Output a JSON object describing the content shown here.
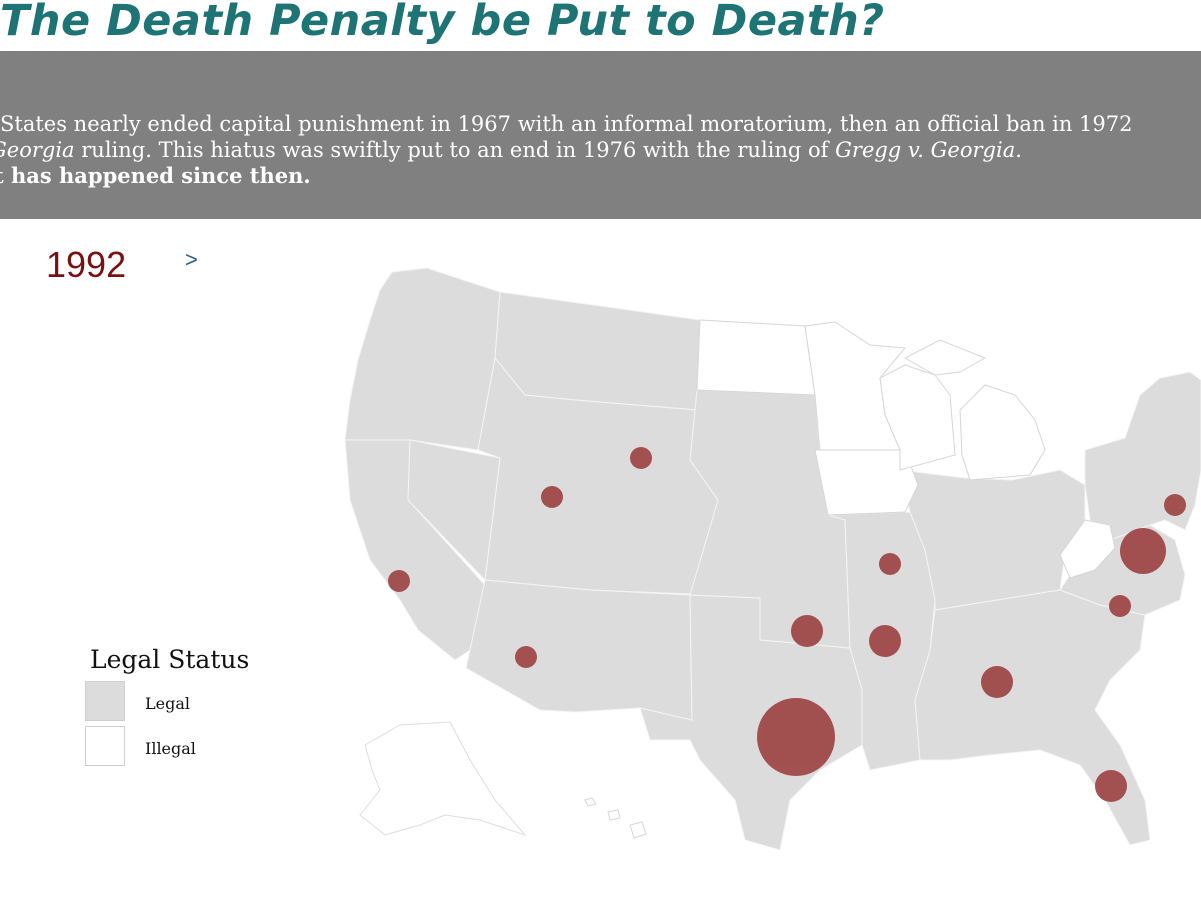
{
  "page": {
    "title": "The Death Penalty be Put to Death?"
  },
  "intro": {
    "line1": "States nearly ended capital punishment in 1967 with an informal moratorium, then an official ban in 1972",
    "line2_pre": "Georgia",
    "line2_mid": " ruling. This hiatus was swiftly put to an end in 1976 with the ruling of ",
    "line2_case": "Gregg v. Georgia",
    "line2_post": ".",
    "line3": "t has happened since then."
  },
  "controls": {
    "year": "1992",
    "next_label": ">"
  },
  "legend": {
    "title": "Legal Status",
    "items": [
      {
        "label": "Legal",
        "color": "#dcdcdc"
      },
      {
        "label": "Illegal",
        "color": "#ffffff"
      }
    ]
  },
  "colors": {
    "title": "#1e7474",
    "banner": "#808080",
    "year": "#7a1111",
    "legal_fill": "#dcdcdc",
    "illegal_fill": "#ffffff",
    "state_border": "#f4f4f4",
    "bubble": "#a14b4b"
  },
  "map": {
    "illegal_states": [
      "North Dakota",
      "Minnesota",
      "Wisconsin",
      "Michigan",
      "Iowa",
      "West Virginia",
      "Alaska",
      "Hawaii"
    ],
    "bubbles": [
      {
        "state": "Wyoming"
      },
      {
        "state": "Utah"
      },
      {
        "state": "California"
      },
      {
        "state": "Arizona"
      },
      {
        "state": "Oklahoma"
      },
      {
        "state": "Arkansas"
      },
      {
        "state": "Missouri"
      },
      {
        "state": "Texas"
      },
      {
        "state": "Alabama"
      },
      {
        "state": "Florida"
      },
      {
        "state": "North Carolina"
      },
      {
        "state": "Virginia"
      },
      {
        "state": "Delaware"
      }
    ]
  }
}
